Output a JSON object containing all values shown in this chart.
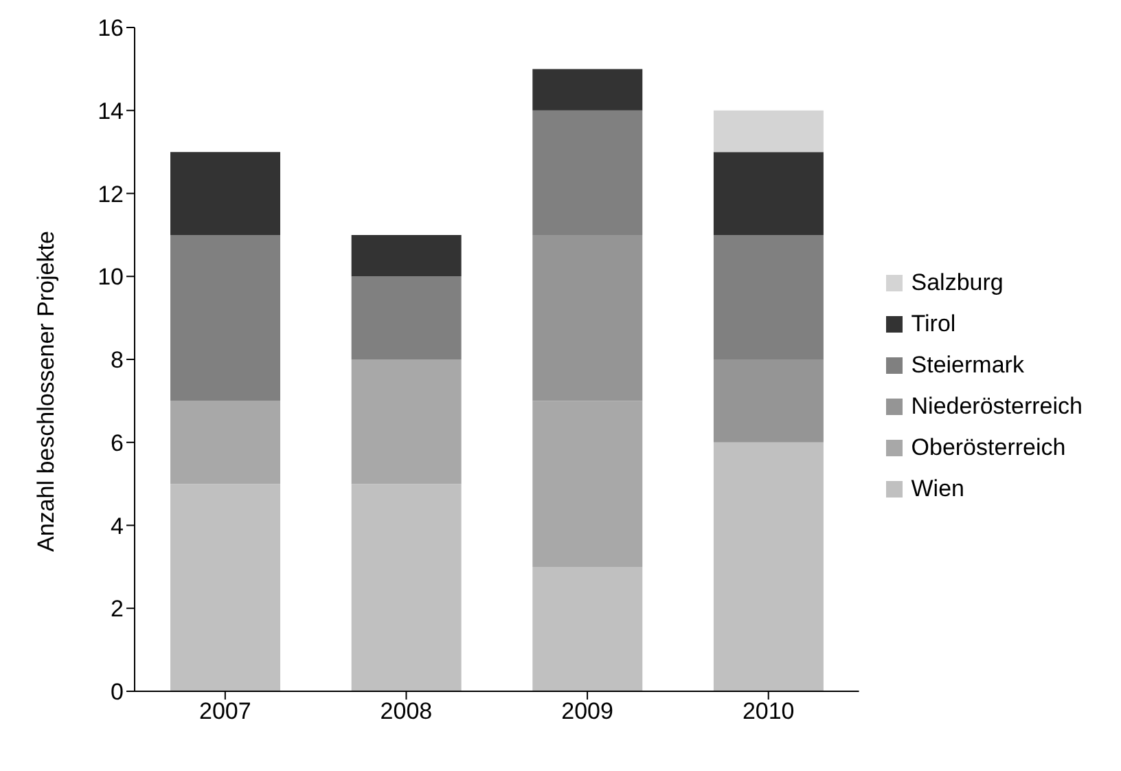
{
  "chart_data": {
    "type": "bar",
    "stacked": true,
    "ylabel": "Anzahl beschlossener Projekte",
    "categories": [
      "2007",
      "2008",
      "2009",
      "2010"
    ],
    "series": [
      {
        "name": "Wien",
        "color": "#c0c0c0",
        "values": [
          5,
          5,
          3,
          6
        ]
      },
      {
        "name": "Oberösterreich",
        "color": "#a8a8a8",
        "values": [
          2,
          3,
          4,
          0
        ]
      },
      {
        "name": "Niederösterreich",
        "color": "#959595",
        "values": [
          0,
          0,
          4,
          2
        ]
      },
      {
        "name": "Steiermark",
        "color": "#808080",
        "values": [
          4,
          2,
          3,
          3
        ]
      },
      {
        "name": "Tirol",
        "color": "#333333",
        "values": [
          2,
          1,
          1,
          2
        ]
      },
      {
        "name": "Salzburg",
        "color": "#d4d4d4",
        "values": [
          0,
          0,
          0,
          1
        ]
      }
    ],
    "ylim": [
      0,
      16
    ],
    "yticks": [
      0,
      2,
      4,
      6,
      8,
      10,
      12,
      14,
      16
    ],
    "grid": false,
    "legend": "right"
  }
}
